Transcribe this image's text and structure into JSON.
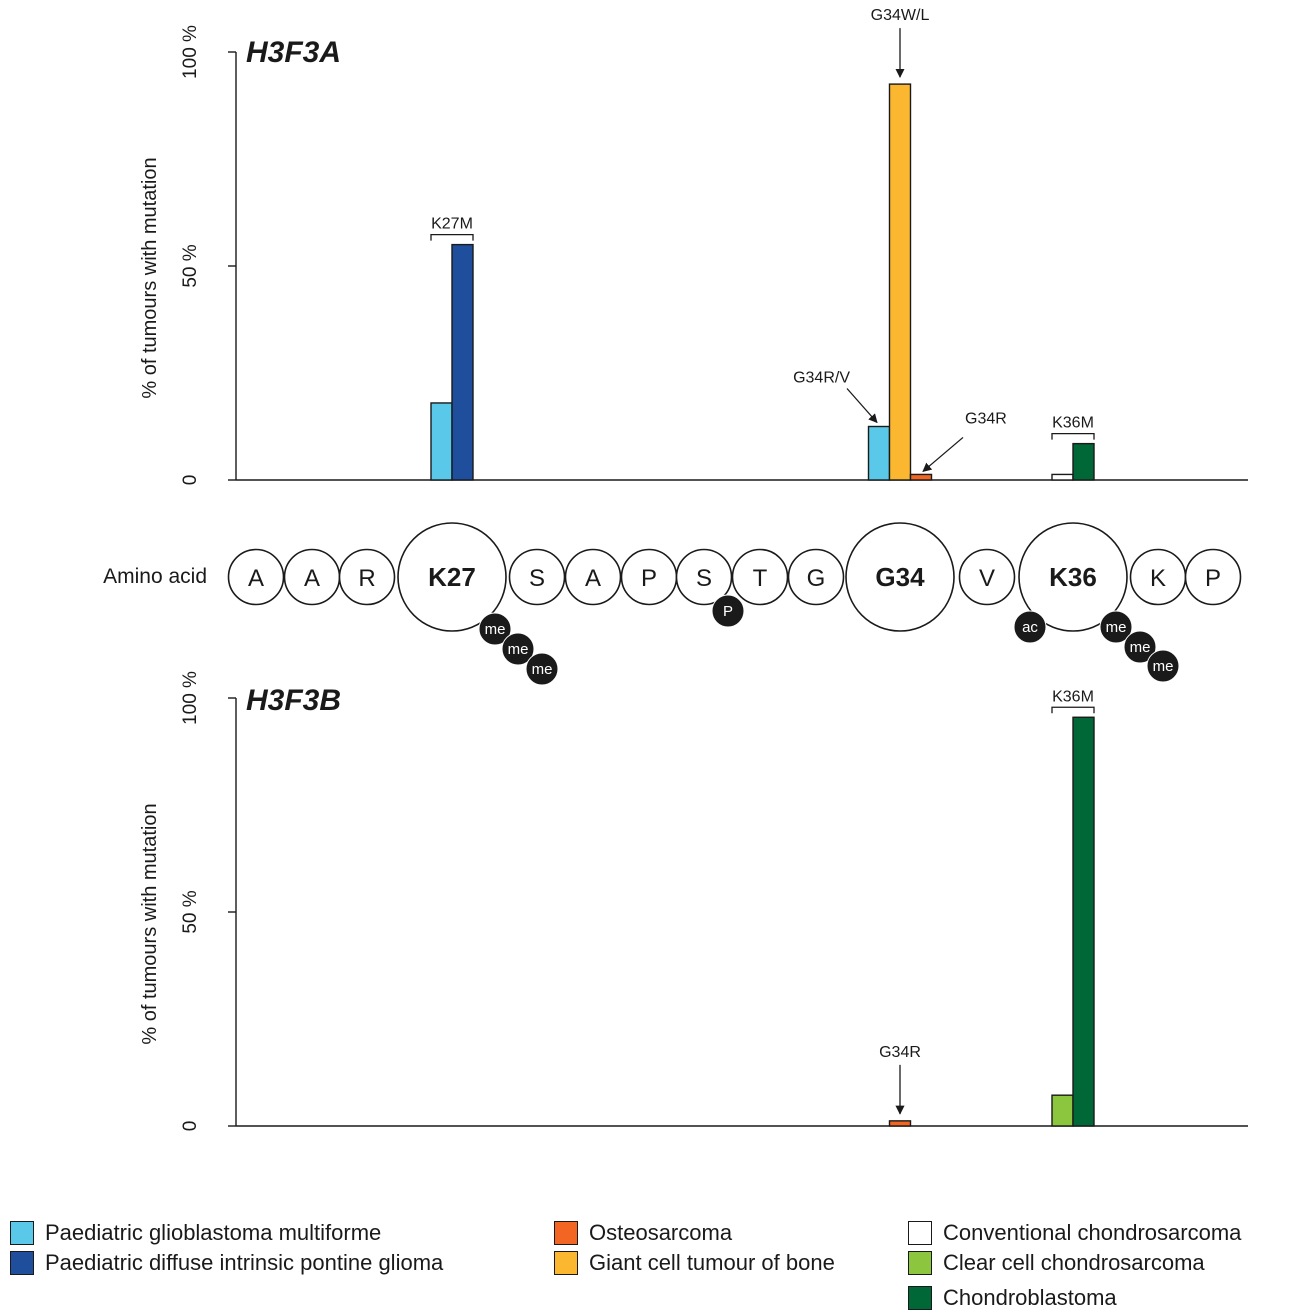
{
  "legend": [
    {
      "id": "pgbm",
      "label": "Paediatric glioblastoma multiforme",
      "color": "#5ac8e8"
    },
    {
      "id": "dipg",
      "label": "Paediatric diffuse intrinsic pontine glioma",
      "color": "#1f4e9c"
    },
    {
      "id": "osteo",
      "label": "Osteosarcoma",
      "color": "#f26522"
    },
    {
      "id": "gct",
      "label": "Giant cell tumour of bone",
      "color": "#fbb72f"
    },
    {
      "id": "conv",
      "label": "Conventional chondrosarcoma",
      "color": "#ffffff"
    },
    {
      "id": "clear",
      "label": "Clear cell chondrosarcoma",
      "color": "#8cc63f"
    },
    {
      "id": "chondro",
      "label": "Chondroblastoma",
      "color": "#006837"
    }
  ],
  "amino_acids": {
    "label": "Amino acid",
    "residues": [
      {
        "letter": "A",
        "size": "small"
      },
      {
        "letter": "A",
        "size": "small"
      },
      {
        "letter": "R",
        "size": "small"
      },
      {
        "letter": "K27",
        "size": "large"
      },
      {
        "letter": "S",
        "size": "small"
      },
      {
        "letter": "A",
        "size": "small"
      },
      {
        "letter": "P",
        "size": "small"
      },
      {
        "letter": "S",
        "size": "small"
      },
      {
        "letter": "T",
        "size": "small"
      },
      {
        "letter": "G",
        "size": "small"
      },
      {
        "letter": "G34",
        "size": "large"
      },
      {
        "letter": "V",
        "size": "small"
      },
      {
        "letter": "K36",
        "size": "large"
      },
      {
        "letter": "K",
        "size": "small"
      },
      {
        "letter": "P",
        "size": "small"
      }
    ],
    "modifications": [
      {
        "residue_index": 3,
        "marks": [
          "me",
          "me",
          "me"
        ]
      },
      {
        "residue_index": 7,
        "marks": [
          "P"
        ]
      },
      {
        "residue_index": 12,
        "marks": [
          "ac"
        ]
      },
      {
        "residue_index": 12,
        "marks": [
          "me",
          "me",
          "me"
        ]
      }
    ]
  },
  "chart_data": [
    {
      "type": "bar",
      "title": "H3F3A",
      "ylabel": "% of tumours with mutation",
      "ylim": [
        0,
        100
      ],
      "y_ticks": [
        {
          "value": 0,
          "label": "0"
        },
        {
          "value": 50,
          "label": "50 %"
        },
        {
          "value": 100,
          "label": "100 %"
        }
      ],
      "groups": [
        {
          "residue_index": 3,
          "bars": [
            {
              "series": "pgbm",
              "value": 18
            },
            {
              "series": "dipg",
              "value": 55
            }
          ]
        },
        {
          "residue_index": 10,
          "bars": [
            {
              "series": "pgbm",
              "value": 12.5
            },
            {
              "series": "gct",
              "value": 92.5
            },
            {
              "series": "osteo",
              "value": 1.3
            }
          ]
        },
        {
          "residue_index": 12,
          "bars": [
            {
              "series": "conv",
              "value": 1.3
            },
            {
              "series": "chondro",
              "value": 8.5
            }
          ]
        }
      ],
      "annotations": [
        {
          "text": "K27M",
          "kind": "bracket",
          "group": 0
        },
        {
          "text": "G34W/L",
          "kind": "arrow-down",
          "group": 1,
          "bar": 1
        },
        {
          "text": "G34R/V",
          "kind": "arrow-diag-right",
          "group": 1,
          "bar": 0
        },
        {
          "text": "G34R",
          "kind": "arrow-diag-left",
          "group": 1,
          "bar": 2
        },
        {
          "text": "K36M",
          "kind": "bracket",
          "group": 2
        }
      ]
    },
    {
      "type": "bar",
      "title": "H3F3B",
      "ylabel": "% of tumours with mutation",
      "ylim": [
        0,
        100
      ],
      "y_ticks": [
        {
          "value": 0,
          "label": "0"
        },
        {
          "value": 50,
          "label": "50 %"
        },
        {
          "value": 100,
          "label": "100 %"
        }
      ],
      "groups": [
        {
          "residue_index": 10,
          "bars": [
            {
              "series": "osteo",
              "value": 1.2
            }
          ]
        },
        {
          "residue_index": 12,
          "bars": [
            {
              "series": "clear",
              "value": 7.2
            },
            {
              "series": "chondro",
              "value": 95.5
            }
          ]
        }
      ],
      "annotations": [
        {
          "text": "G34R",
          "kind": "arrow-down",
          "group": 0,
          "bar": 0
        },
        {
          "text": "K36M",
          "kind": "bracket",
          "group": 1
        }
      ]
    }
  ]
}
